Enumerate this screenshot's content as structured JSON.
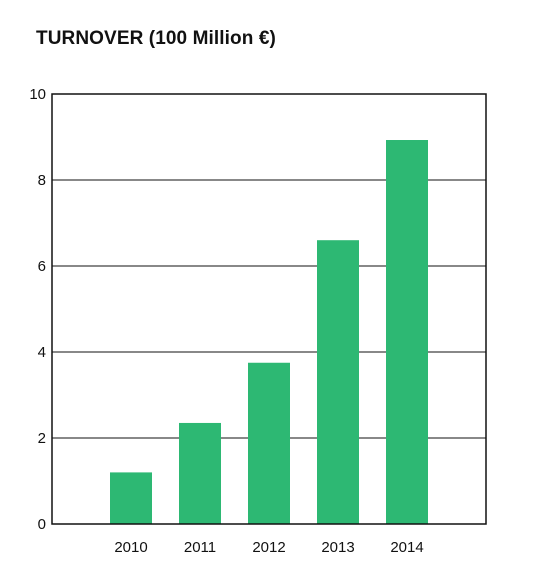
{
  "chart_data": {
    "type": "bar",
    "title": "TURNOVER (100 Million €)",
    "categories": [
      "2010",
      "2011",
      "2012",
      "2013",
      "2014"
    ],
    "values": [
      1.2,
      2.35,
      3.75,
      6.6,
      8.93
    ],
    "ylim": [
      0,
      10
    ],
    "yticks": [
      "0",
      "2",
      "4",
      "6",
      "8",
      "10"
    ],
    "grid": true,
    "legend": "none",
    "bar_color": "#2db873"
  }
}
